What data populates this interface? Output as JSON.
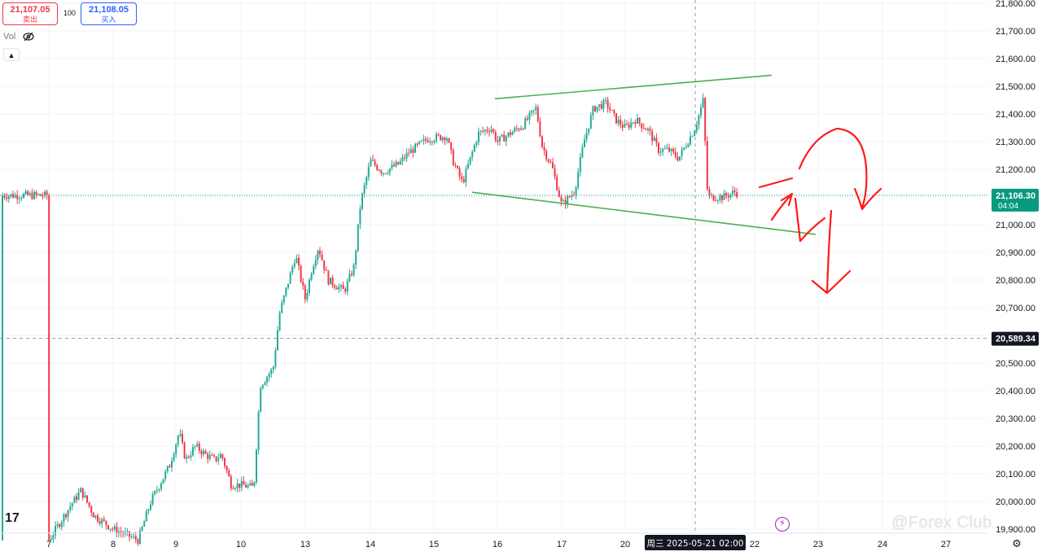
{
  "toolbar": {
    "sell_price": "21,107.05",
    "sell_label": "卖出",
    "quantity": "100",
    "buy_price": "21,108.05",
    "buy_label": "买入",
    "vol_label": "Vol",
    "collapse_icon": "chevron-up-icon",
    "eye_icon": "eye-off-icon",
    "logo_text": "17",
    "watermark": "@Forex Club",
    "bolt_icon": "lightning-icon",
    "settings_icon": "gear-icon"
  },
  "colors": {
    "up": "#22ab94",
    "down": "#f23645",
    "trendline": "#4caf50",
    "annotation": "#ff1a1a",
    "price_tag": "#089981",
    "crosshair_tag": "#131722"
  },
  "chart_data": {
    "type": "candlestick",
    "ylim": [
      19860,
      21830
    ],
    "y_ticks": [
      19900,
      20000,
      20100,
      20200,
      20300,
      20400,
      20500,
      20600,
      20700,
      20800,
      20900,
      21000,
      21100,
      21200,
      21300,
      21400,
      21500,
      21600,
      21700,
      21800
    ],
    "y_tick_labels": [
      "19,900.00",
      "20,000.00",
      "20,100.00",
      "20,200.00",
      "20,300.00",
      "20,400.00",
      "20,500.00",
      "20,600.00",
      "20,700.00",
      "20,800.00",
      "20,900.00",
      "21,000.00",
      "21,100.00",
      "21,200.00",
      "21,300.00",
      "21,400.00",
      "21,500.00",
      "21,600.00",
      "21,700.00",
      "21,800.00"
    ],
    "x_tick_labels": [
      "7",
      "8",
      "9",
      "10",
      "13",
      "14",
      "15",
      "16",
      "17",
      "20",
      "21",
      "22",
      "23",
      "24",
      "27"
    ],
    "crosshair_x_label": "周三 2025-05-21  02:00",
    "last_price": {
      "label": "21,106.30",
      "countdown": "04:04",
      "value": 21106.3
    },
    "crosshair_price": {
      "label": "20,589.34",
      "value": 20589.34
    },
    "path": [
      [
        0,
        19860
      ],
      [
        0.35,
        19990
      ],
      [
        0.5,
        20040
      ],
      [
        0.7,
        19950
      ],
      [
        1,
        19900
      ],
      [
        1.4,
        19860
      ],
      [
        1.6,
        20000
      ],
      [
        1.9,
        20130
      ],
      [
        2.05,
        20250
      ],
      [
        2.15,
        20150
      ],
      [
        2.3,
        20200
      ],
      [
        2.45,
        20170
      ],
      [
        2.6,
        20150
      ],
      [
        2.7,
        20170
      ],
      [
        2.85,
        20060
      ],
      [
        3.0,
        20060
      ],
      [
        3.2,
        20050
      ],
      [
        3.3,
        20420
      ],
      [
        3.5,
        20480
      ],
      [
        3.6,
        20680
      ],
      [
        3.85,
        20890
      ],
      [
        4.0,
        20730
      ],
      [
        4.1,
        20840
      ],
      [
        4.2,
        20920
      ],
      [
        4.35,
        20800
      ],
      [
        4.6,
        20760
      ],
      [
        4.75,
        20850
      ],
      [
        4.85,
        21080
      ],
      [
        5.0,
        21230
      ],
      [
        5.2,
        21190
      ],
      [
        5.45,
        21220
      ],
      [
        5.6,
        21260
      ],
      [
        5.9,
        21310
      ],
      [
        6.2,
        21320
      ],
      [
        6.3,
        21230
      ],
      [
        6.45,
        21150
      ],
      [
        6.7,
        21330
      ],
      [
        6.9,
        21350
      ],
      [
        7.0,
        21300
      ],
      [
        7.2,
        21330
      ],
      [
        7.4,
        21360
      ],
      [
        7.6,
        21420
      ],
      [
        7.7,
        21280
      ],
      [
        7.85,
        21210
      ],
      [
        8.0,
        21070
      ],
      [
        8.2,
        21120
      ],
      [
        8.35,
        21300
      ],
      [
        8.5,
        21420
      ],
      [
        8.7,
        21440
      ],
      [
        8.85,
        21380
      ],
      [
        9.0,
        21350
      ],
      [
        9.15,
        21380
      ],
      [
        9.35,
        21340
      ],
      [
        9.5,
        21270
      ],
      [
        9.65,
        21270
      ],
      [
        9.8,
        21240
      ],
      [
        10.05,
        21350
      ],
      [
        10.18,
        21450
      ],
      [
        10.25,
        21100
      ],
      [
        10.5,
        21100
      ],
      [
        10.7,
        21120
      ],
      [
        10.75,
        21106
      ]
    ]
  }
}
